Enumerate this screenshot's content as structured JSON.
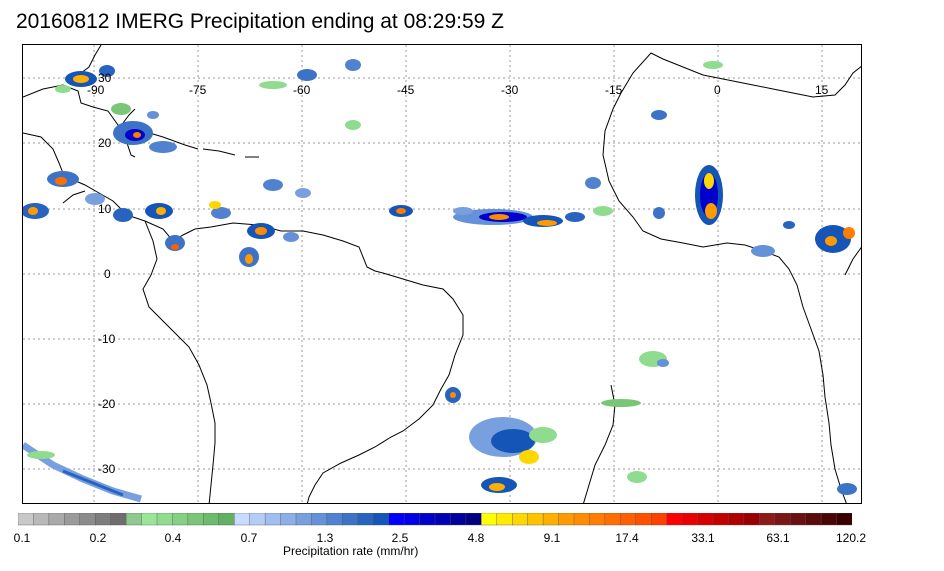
{
  "title": "20160812 IMERG Precipitation ending at 08:29:59 Z",
  "map": {
    "lon_labels": [
      "-90",
      "-75",
      "-60",
      "-45",
      "-30",
      "-15",
      "0",
      "15"
    ],
    "lat_labels": [
      "30",
      "20",
      "10",
      "0",
      "-10",
      "-20",
      "-30"
    ],
    "grid": true,
    "grid_style": "dotted"
  },
  "colorbar": {
    "label": "Precipitation rate (mm/hr)",
    "tick_labels": [
      "0.1",
      "0.2",
      "0.4",
      "0.7",
      "1.3",
      "2.5",
      "4.8",
      "9.1",
      "17.4",
      "33.1",
      "63.1",
      "120.2"
    ],
    "colors": [
      "#c8c8c8",
      "#b9b9b9",
      "#aaaaaa",
      "#9b9b9b",
      "#8c8c8c",
      "#7d7d7d",
      "#6e6e6e",
      "#8fc98f",
      "#99e699",
      "#8fdc8f",
      "#84d184",
      "#79c679",
      "#6dbb6d",
      "#62b062",
      "#c8dcff",
      "#b4cdf7",
      "#a0beef",
      "#8cafe7",
      "#78a0df",
      "#6491d7",
      "#5082cf",
      "#3c73c7",
      "#2864bf",
      "#1455b7",
      "#0000ff",
      "#0000e6",
      "#0000cd",
      "#0000b4",
      "#00009b",
      "#000082",
      "#ffff00",
      "#ffeb00",
      "#ffd700",
      "#ffc300",
      "#ffaf00",
      "#ff9b00",
      "#ff8c00",
      "#ff7d00",
      "#ff6e00",
      "#ff5f00",
      "#ff5000",
      "#ff4100",
      "#ff0000",
      "#eb0000",
      "#d70000",
      "#c30000",
      "#af0000",
      "#9b0000",
      "#8b1a1a",
      "#7a1515",
      "#6a1010",
      "#5a0b0b",
      "#4a0606",
      "#3a0000"
    ]
  }
}
